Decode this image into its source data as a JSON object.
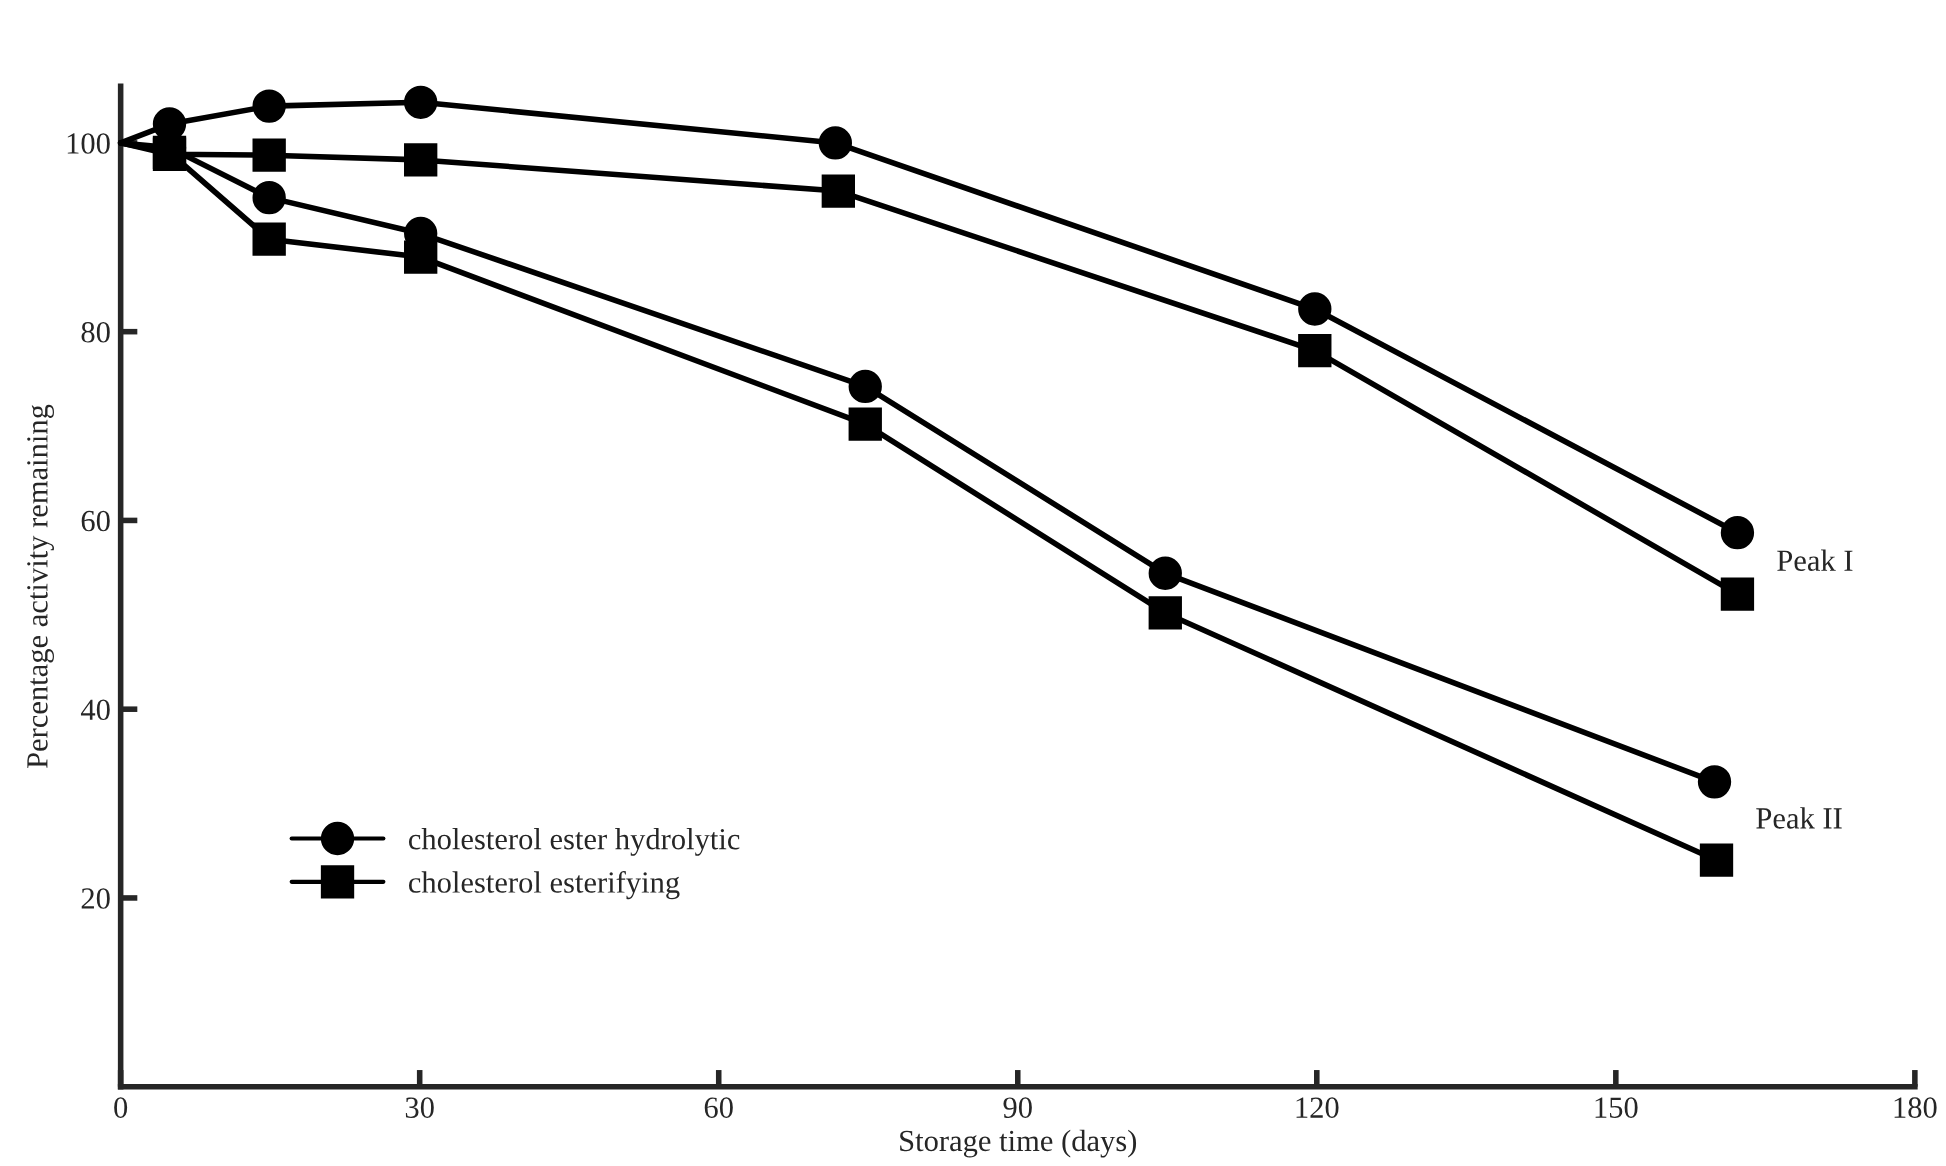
{
  "chart_data": {
    "type": "line",
    "xlabel": "Storage time (days)",
    "ylabel": "Percentage activity remaining",
    "xlim": [
      0,
      180
    ],
    "ylim": [
      0,
      106
    ],
    "xticks": [
      0,
      30,
      60,
      90,
      120,
      150,
      180
    ],
    "yticks": [
      20,
      40,
      60,
      80,
      100
    ],
    "grid": false,
    "legend": "bottom left",
    "line_style": "solid",
    "series": [
      {
        "name": "cholesterol ester hydrolytic",
        "color": "#000000",
        "marker": "circle",
        "x": [
          0,
          4.9,
          14.9,
          30.1,
          71.7,
          119.8,
          162.2
        ],
        "values": [
          100,
          102.0,
          103.9,
          104.3,
          100.0,
          82.4,
          58.7
        ]
      },
      {
        "name": "cholesterol esterifying",
        "color": "#000000",
        "marker": "square",
        "x": [
          0,
          4.9,
          14.9,
          30.1,
          72,
          119.8,
          162.2
        ],
        "values": [
          100,
          98.8,
          98.7,
          98.2,
          94.9,
          78.0,
          52.2
        ]
      },
      {
        "color": "#000000",
        "marker": "circle",
        "x": [
          0,
          4.9,
          14.9,
          30.1,
          74.7,
          104.8,
          159.9
        ],
        "values": [
          100,
          99.5,
          94.2,
          90.4,
          74.2,
          54.4,
          32.3
        ]
      },
      {
        "color": "#000000",
        "marker": "square",
        "x": [
          0,
          4.9,
          14.9,
          30.1,
          74.7,
          104.8,
          160.1
        ],
        "values": [
          100,
          99.0,
          89.8,
          87.9,
          70.2,
          50.2,
          24.0
        ]
      }
    ],
    "annotations": [
      "Peak I",
      "Peak II"
    ]
  }
}
